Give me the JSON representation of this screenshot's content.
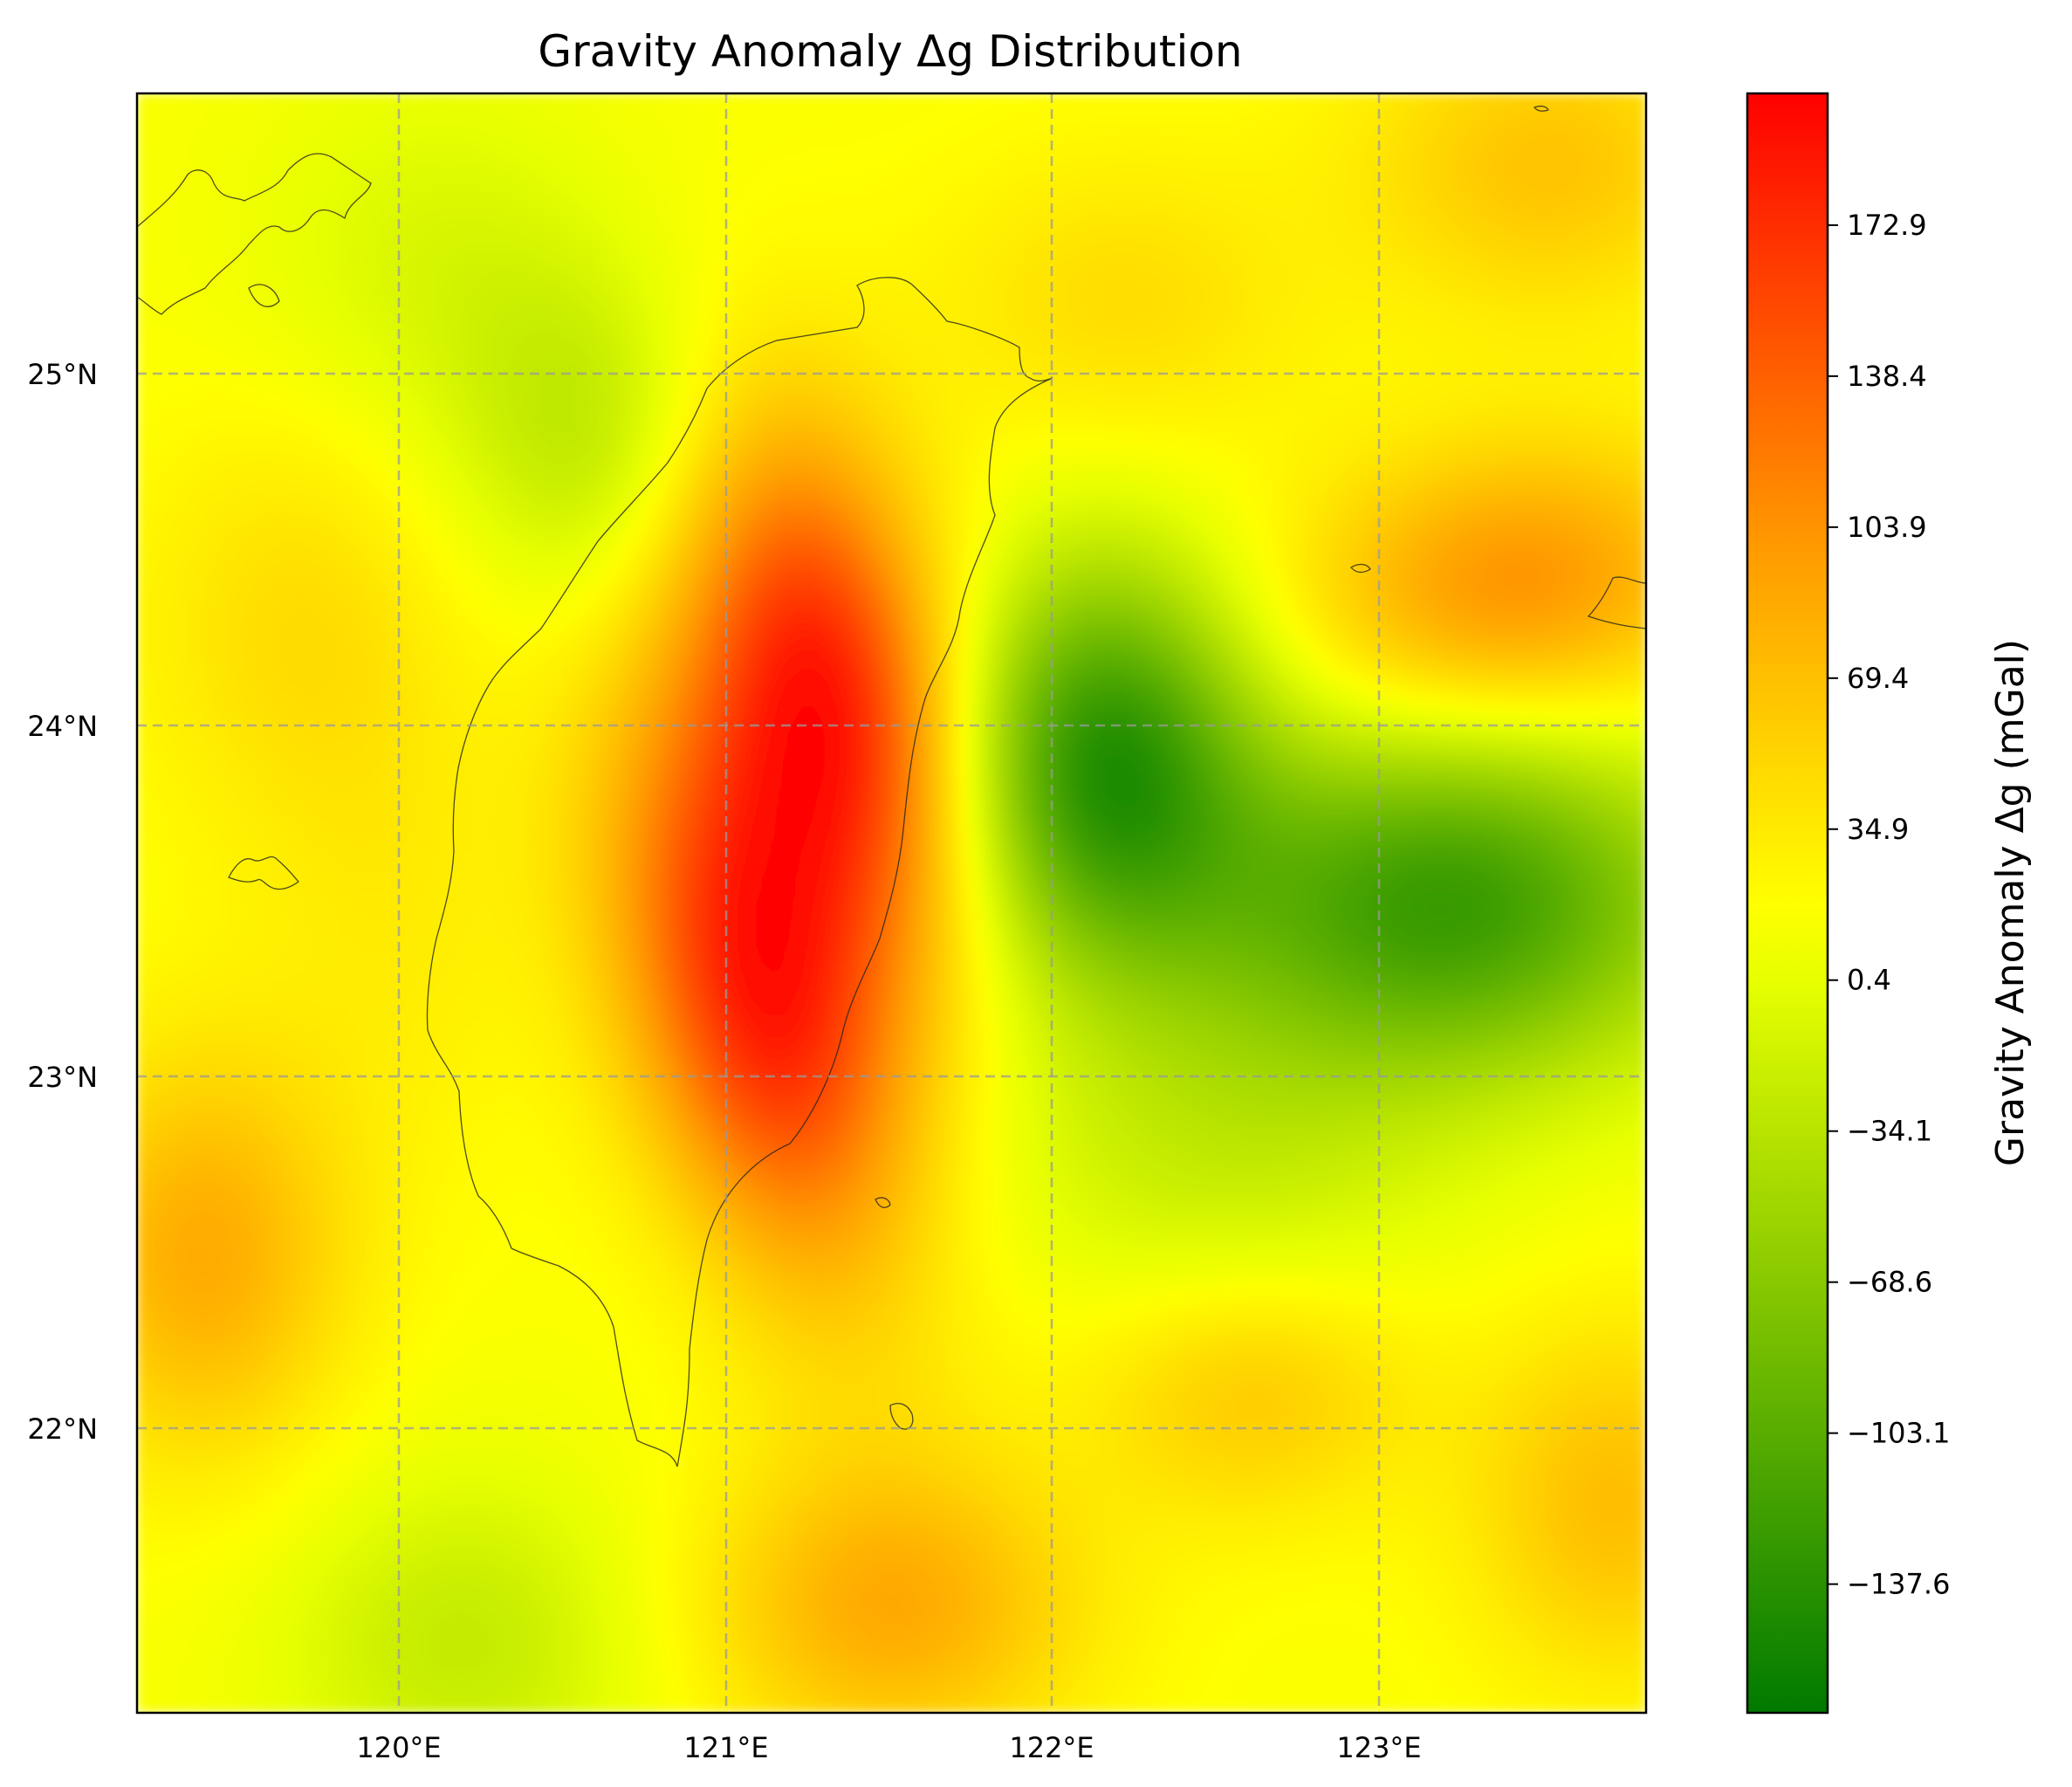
{
  "chart_data": {
    "type": "heatmap",
    "title": "Gravity Anomaly Δg Distribution",
    "projection": "PlateCarree map with coastlines and dashed gridlines",
    "x_ticks": [
      "120°E",
      "121°E",
      "122°E",
      "123°E"
    ],
    "y_ticks": [
      "25°N",
      "24°N",
      "23°N",
      "22°N"
    ],
    "xlim": [
      119.2,
      123.8
    ],
    "ylim": [
      21.2,
      25.8
    ],
    "grid": true,
    "colorbar": {
      "label": "Gravity Anomaly Δg (mGal)",
      "ticks": [
        "172.9",
        "138.4",
        "103.9",
        "69.4",
        "34.9",
        "0.4",
        "−34.1",
        "−68.6",
        "−103.1",
        "−137.6"
      ],
      "range": [
        -167,
        203
      ],
      "colors": [
        "#007a00",
        "#ffff00",
        "#ff0000"
      ]
    },
    "field_features": [
      {
        "kind": "high",
        "lon": 121.3,
        "lat": 24.1,
        "value": 185
      },
      {
        "kind": "high",
        "lon": 121.1,
        "lat": 23.2,
        "value": 190
      },
      {
        "kind": "low",
        "lon": 122.15,
        "lat": 23.9,
        "value": -150
      },
      {
        "kind": "low",
        "lon": 123.2,
        "lat": 23.5,
        "value": -140
      },
      {
        "kind": "high",
        "lon": 123.4,
        "lat": 24.4,
        "value": 90
      },
      {
        "kind": "high",
        "lon": 119.4,
        "lat": 22.5,
        "value": 70
      },
      {
        "kind": "low",
        "lon": 120.6,
        "lat": 24.8,
        "value": -45
      }
    ]
  },
  "colors": {
    "gridline": "#999999",
    "coastline": "#222222",
    "frame": "#000000"
  }
}
